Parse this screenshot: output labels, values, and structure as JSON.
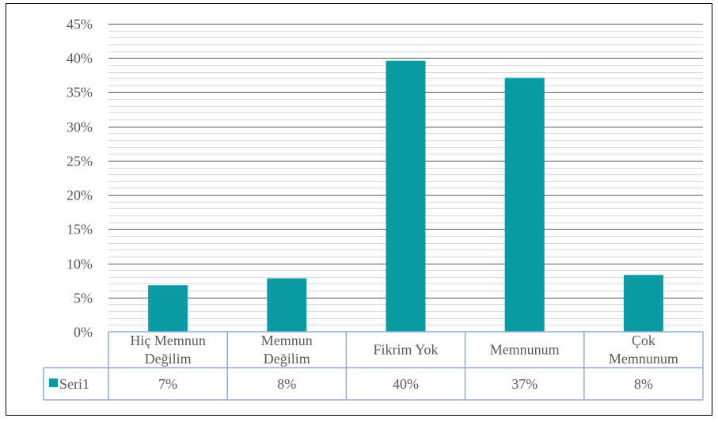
{
  "chart_data": {
    "type": "bar",
    "categories": [
      [
        "Hiç Memnun",
        "Değilim"
      ],
      [
        "Memnun",
        "Değilim"
      ],
      [
        "Fikrim Yok"
      ],
      [
        "Memnunum"
      ],
      [
        "Çok",
        "Memnunum"
      ]
    ],
    "series": [
      {
        "name": "Seri1",
        "values": [
          0.068,
          0.078,
          0.396,
          0.371,
          0.083
        ],
        "labels": [
          "7%",
          "8%",
          "40%",
          "37%",
          "8%"
        ],
        "color": "#0a9ba3"
      }
    ],
    "ylim": [
      0,
      0.45
    ],
    "ytick_labels": [
      "0%",
      "5%",
      "10%",
      "15%",
      "20%",
      "25%",
      "30%",
      "35%",
      "40%",
      "45%"
    ],
    "ytick_step": 0.05,
    "minor_grid_step": 0.01,
    "grid": true,
    "data_table": true,
    "legend_in_table": true
  },
  "colors": {
    "bar": "#0a9ba3",
    "major_grid": "#595959",
    "minor_grid": "#d9d9d9",
    "table_border": "#8eaadb",
    "text": "#595959"
  }
}
